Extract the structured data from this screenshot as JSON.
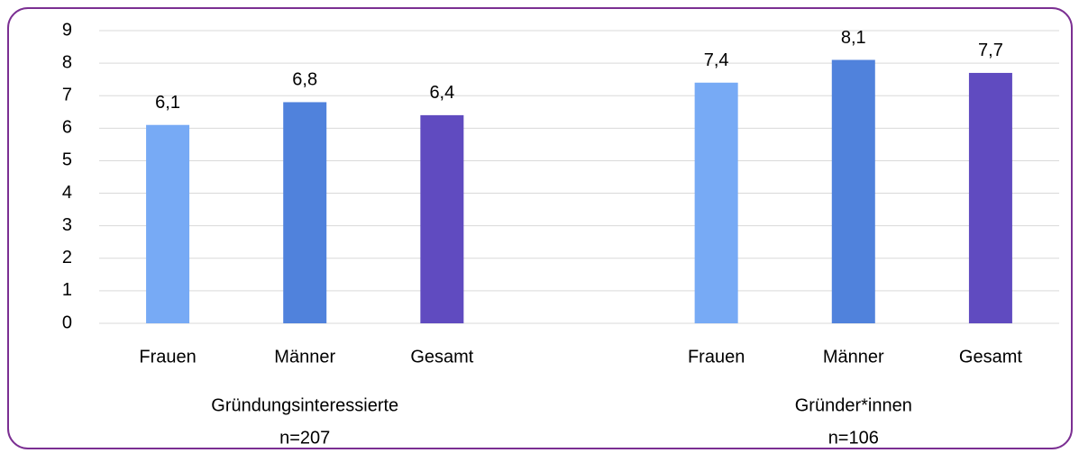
{
  "chart_data": {
    "type": "bar",
    "categories": [
      "Frauen",
      "Männer",
      "Gesamt",
      "Frauen",
      "Männer",
      "Gesamt"
    ],
    "groups": [
      {
        "name": "Gründungsinteressierte",
        "note": "n=207"
      },
      {
        "name": "Gründer*innen",
        "note": "n=106"
      }
    ],
    "values": [
      6.1,
      6.8,
      6.4,
      7.4,
      8.1,
      7.7
    ],
    "value_labels": [
      "6,1",
      "6,8",
      "6,4",
      "7,4",
      "8,1",
      "7,7"
    ],
    "colors": [
      "#77aaf5",
      "#5082dc",
      "#604bc0",
      "#77aaf5",
      "#5082dc",
      "#604bc0"
    ],
    "ylim": [
      0,
      9
    ],
    "yticks": [
      0,
      1,
      2,
      3,
      4,
      5,
      6,
      7,
      8,
      9
    ],
    "grid": true
  }
}
